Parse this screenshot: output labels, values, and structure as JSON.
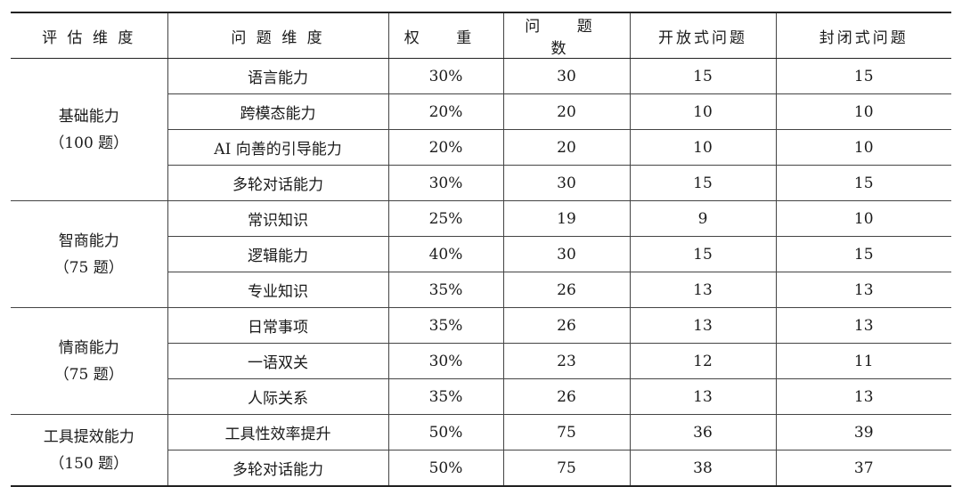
{
  "table": {
    "headers": [
      "评 估 维 度",
      "问 题 维 度",
      "权 重",
      "问 题 数",
      "开放式问题",
      "封闭式问题"
    ],
    "groups": [
      {
        "name": "基础能力",
        "count": "（100 题）",
        "rows": [
          {
            "dimension": "语言能力",
            "weight": "30%",
            "questions": "30",
            "open": "15",
            "closed": "15"
          },
          {
            "dimension": "跨模态能力",
            "weight": "20%",
            "questions": "20",
            "open": "10",
            "closed": "10"
          },
          {
            "dimension": "AI 向善的引导能力",
            "weight": "20%",
            "questions": "20",
            "open": "10",
            "closed": "10"
          },
          {
            "dimension": "多轮对话能力",
            "weight": "30%",
            "questions": "30",
            "open": "15",
            "closed": "15"
          }
        ]
      },
      {
        "name": "智商能力",
        "count": "（75 题）",
        "rows": [
          {
            "dimension": "常识知识",
            "weight": "25%",
            "questions": "19",
            "open": "9",
            "closed": "10"
          },
          {
            "dimension": "逻辑能力",
            "weight": "40%",
            "questions": "30",
            "open": "15",
            "closed": "15"
          },
          {
            "dimension": "专业知识",
            "weight": "35%",
            "questions": "26",
            "open": "13",
            "closed": "13"
          }
        ]
      },
      {
        "name": "情商能力",
        "count": "（75 题）",
        "rows": [
          {
            "dimension": "日常事项",
            "weight": "35%",
            "questions": "26",
            "open": "13",
            "closed": "13"
          },
          {
            "dimension": "一语双关",
            "weight": "30%",
            "questions": "23",
            "open": "12",
            "closed": "11"
          },
          {
            "dimension": "人际关系",
            "weight": "35%",
            "questions": "26",
            "open": "13",
            "closed": "13"
          }
        ]
      },
      {
        "name": "工具提效能力",
        "count": "（150 题）",
        "rows": [
          {
            "dimension": "工具性效率提升",
            "weight": "50%",
            "questions": "75",
            "open": "36",
            "closed": "39"
          },
          {
            "dimension": "多轮对话能力",
            "weight": "50%",
            "questions": "75",
            "open": "38",
            "closed": "37"
          }
        ]
      }
    ]
  }
}
